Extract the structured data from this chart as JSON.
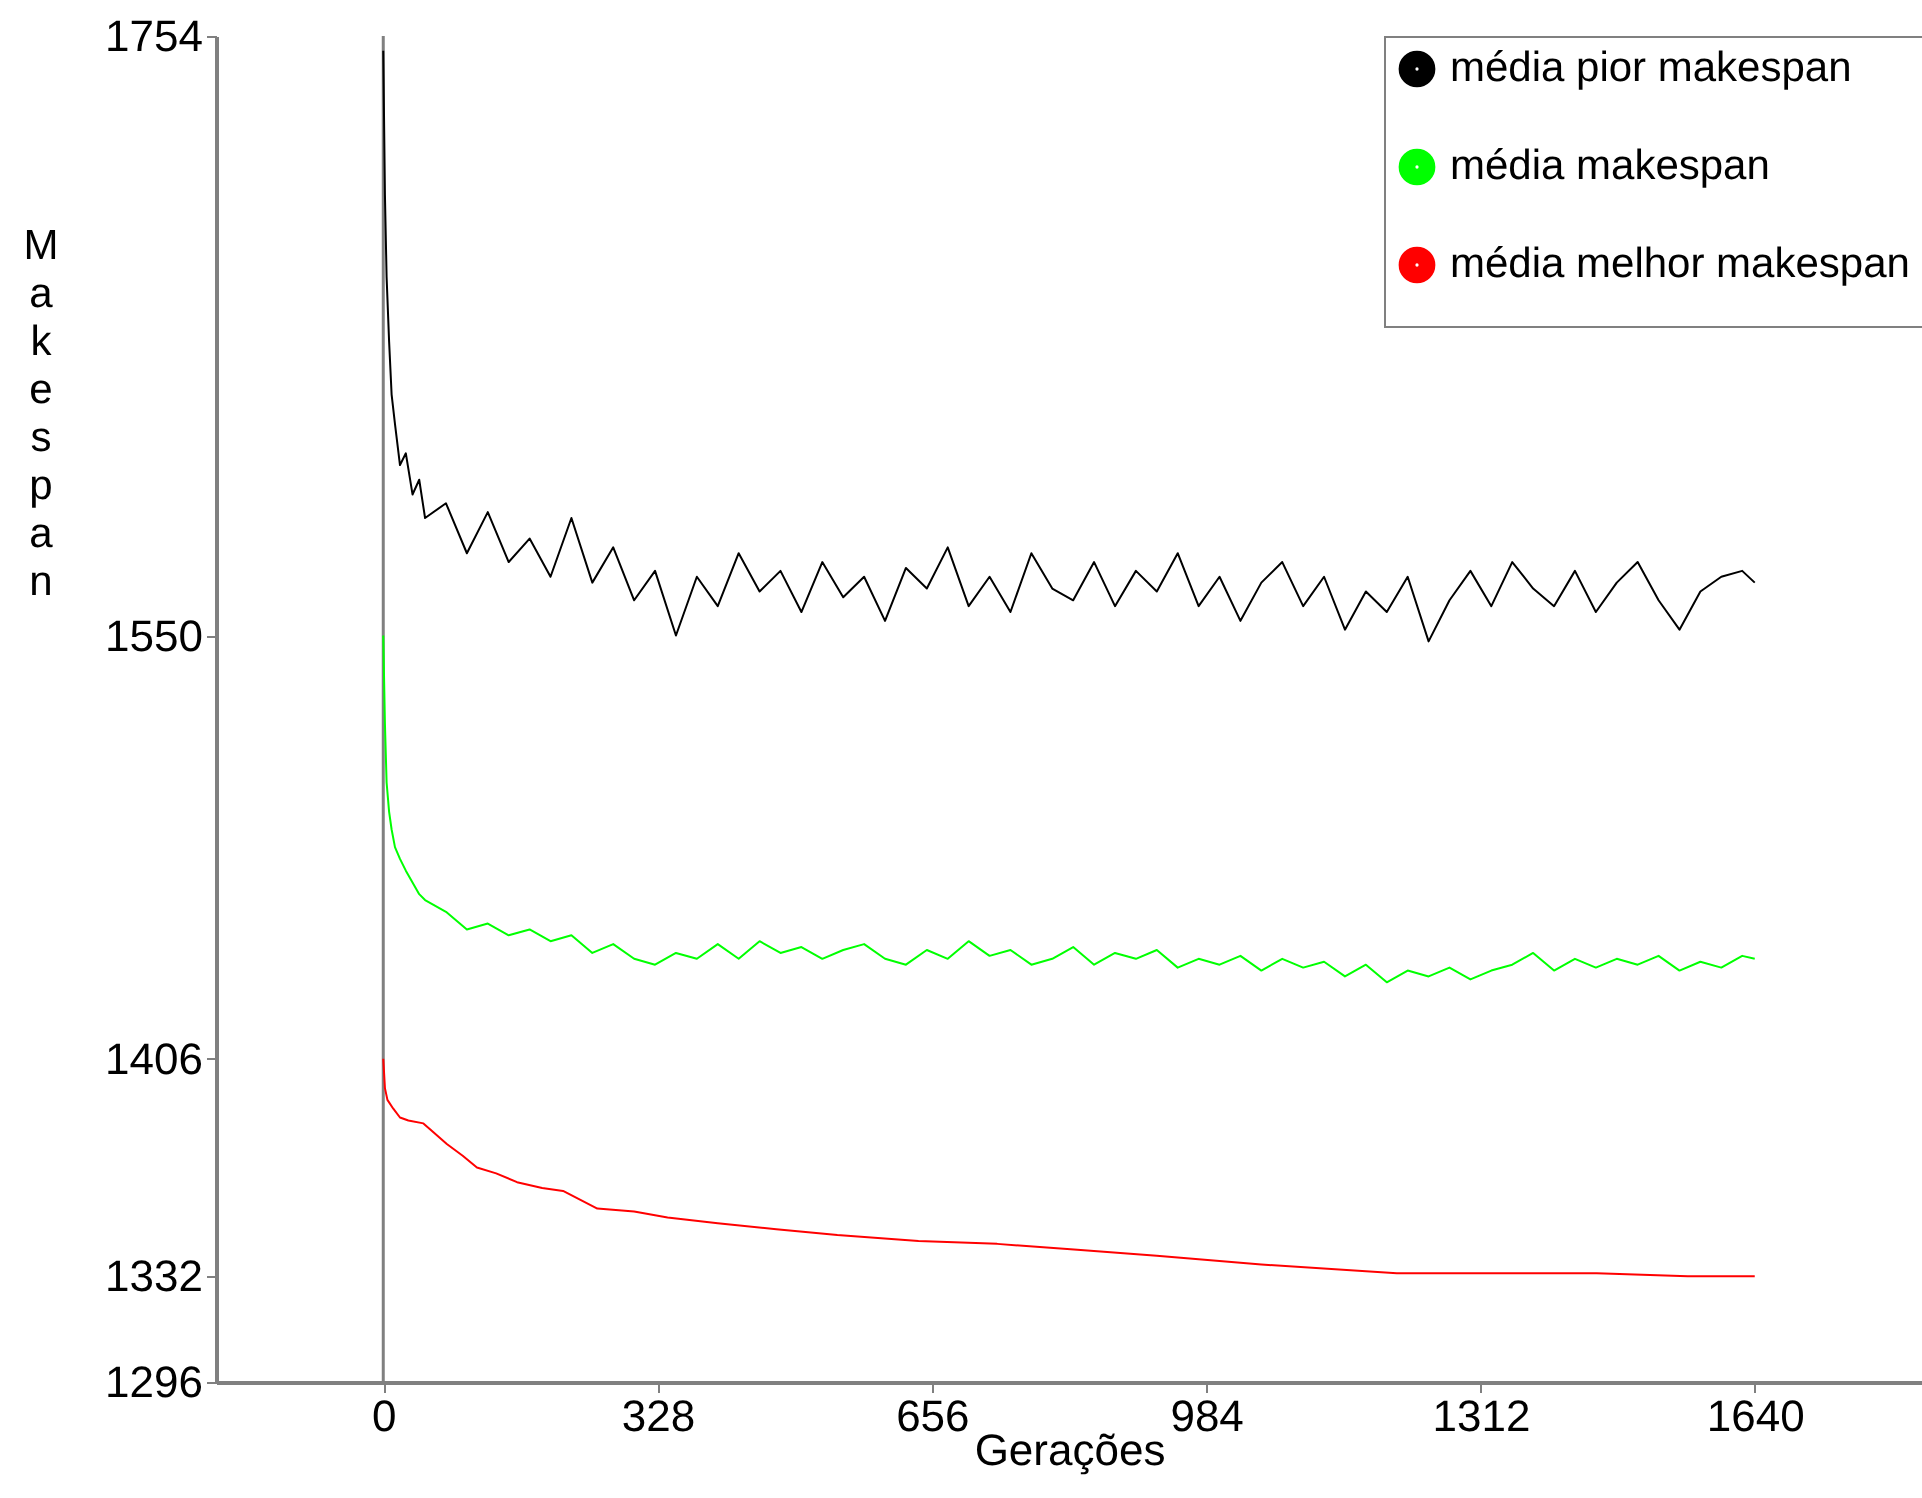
{
  "chart_data": {
    "type": "line",
    "xlabel": "Gerações",
    "ylabel": "Makespan",
    "x": [
      0,
      2,
      4,
      7,
      10,
      14,
      20,
      27,
      35,
      43,
      50,
      75,
      100,
      125,
      150,
      175,
      200,
      225,
      250,
      275,
      300,
      325,
      350,
      375,
      400,
      425,
      450,
      475,
      500,
      525,
      550,
      575,
      600,
      625,
      650,
      675,
      700,
      725,
      750,
      775,
      800,
      825,
      850,
      875,
      900,
      925,
      950,
      975,
      1000,
      1025,
      1050,
      1075,
      1100,
      1125,
      1150,
      1175,
      1200,
      1225,
      1250,
      1275,
      1300,
      1325,
      1350,
      1375,
      1400,
      1425,
      1450,
      1475,
      1500,
      1525,
      1550,
      1575,
      1600,
      1625,
      1640
    ],
    "series": [
      {
        "name": "média pior makespan",
        "color": "#000000",
        "values": [
          1749,
          1700,
          1672,
          1650,
          1632,
          1622,
          1608,
          1612,
          1598,
          1603,
          1590,
          1595,
          1578,
          1592,
          1575,
          1583,
          1570,
          1590,
          1568,
          1580,
          1562,
          1572,
          1550,
          1570,
          1560,
          1578,
          1565,
          1572,
          1558,
          1575,
          1563,
          1570,
          1555,
          1573,
          1566,
          1580,
          1560,
          1570,
          1558,
          1578,
          1566,
          1562,
          1575,
          1560,
          1572,
          1565,
          1578,
          1560,
          1570,
          1555,
          1568,
          1575,
          1560,
          1570,
          1552,
          1565,
          1558,
          1570,
          1548,
          1562,
          1572,
          1560,
          1575,
          1566,
          1560,
          1572,
          1558,
          1568,
          1575,
          1562,
          1552,
          1565,
          1570,
          1572,
          1568
        ]
      },
      {
        "name": "média makespan",
        "color": "#00ff00",
        "values": [
          1550,
          1520,
          1500,
          1490,
          1484,
          1478,
          1474,
          1470,
          1466,
          1462,
          1460,
          1456,
          1450,
          1452,
          1448,
          1450,
          1446,
          1448,
          1442,
          1445,
          1440,
          1438,
          1442,
          1440,
          1445,
          1440,
          1446,
          1442,
          1444,
          1440,
          1443,
          1445,
          1440,
          1438,
          1443,
          1440,
          1446,
          1441,
          1443,
          1438,
          1440,
          1444,
          1438,
          1442,
          1440,
          1443,
          1437,
          1440,
          1438,
          1441,
          1436,
          1440,
          1437,
          1439,
          1434,
          1438,
          1432,
          1436,
          1434,
          1437,
          1433,
          1436,
          1438,
          1442,
          1436,
          1440,
          1437,
          1440,
          1438,
          1441,
          1436,
          1439,
          1437,
          1441,
          1440
        ]
      },
      {
        "name": "média melhor makespan",
        "color": "#ff0000",
        "x": [
          0,
          2,
          5,
          12,
          20,
          30,
          48,
          60,
          76,
          95,
          112,
          135,
          160,
          190,
          215,
          256,
          300,
          340,
          400,
          470,
          543,
          640,
          734,
          830,
          925,
          1050,
          1212,
          1330,
          1451,
          1560,
          1640
        ],
        "values": [
          1406,
          1396,
          1392,
          1389,
          1386,
          1385,
          1384,
          1381,
          1377,
          1373,
          1369,
          1367,
          1364,
          1362,
          1361,
          1355,
          1354,
          1352,
          1350,
          1348,
          1346,
          1344,
          1343,
          1341,
          1339,
          1336,
          1333,
          1333,
          1333,
          1332,
          1332
        ]
      }
    ],
    "xlim": [
      -200,
      1840
    ],
    "xticks": [
      0,
      328,
      656,
      984,
      1312,
      1640
    ],
    "ylim": [
      1296,
      1754
    ],
    "yticks": [
      1296,
      1332,
      1406,
      1550,
      1754
    ],
    "ref_lines": [
      {
        "axis": "x",
        "value": 0,
        "color": "#808080"
      }
    ],
    "grid": false,
    "legend": "top right",
    "marker": "none",
    "line_style": "solid"
  }
}
